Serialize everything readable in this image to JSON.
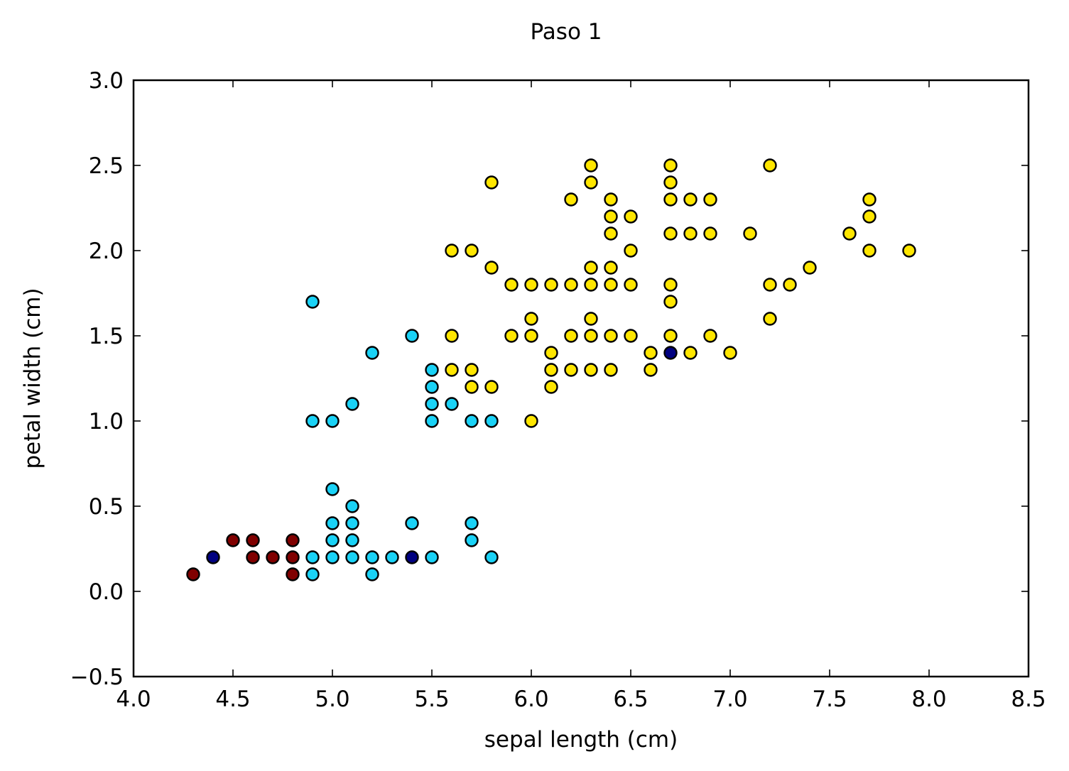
{
  "chart_data": {
    "type": "scatter",
    "title": "Paso 1",
    "xlabel": "sepal length (cm)",
    "ylabel": "petal width (cm)",
    "xlim": [
      4.0,
      8.5
    ],
    "ylim": [
      -0.5,
      3.0
    ],
    "xticks": [
      4.0,
      4.5,
      5.0,
      5.5,
      6.0,
      6.5,
      7.0,
      7.5,
      8.0,
      8.5
    ],
    "yticks": [
      -0.5,
      0.0,
      0.5,
      1.0,
      1.5,
      2.0,
      2.5,
      3.0
    ],
    "xtick_labels": [
      "4.0",
      "4.5",
      "5.0",
      "5.5",
      "6.0",
      "6.5",
      "7.0",
      "7.5",
      "8.0",
      "8.5"
    ],
    "ytick_labels": [
      "−0.5",
      "0.0",
      "0.5",
      "1.0",
      "1.5",
      "2.0",
      "2.5",
      "3.0"
    ],
    "grid": false,
    "series": [
      {
        "color": "#800000",
        "points": [
          [
            4.3,
            0.1
          ],
          [
            4.5,
            0.3
          ],
          [
            4.6,
            0.3
          ],
          [
            4.6,
            0.2
          ],
          [
            4.7,
            0.2
          ],
          [
            4.8,
            0.3
          ],
          [
            4.8,
            0.2
          ],
          [
            4.8,
            0.1
          ]
        ]
      },
      {
        "color": "#1ad2f6",
        "points": [
          [
            4.9,
            0.2
          ],
          [
            4.9,
            0.1
          ],
          [
            4.9,
            1.0
          ],
          [
            4.9,
            1.7
          ],
          [
            5.0,
            0.2
          ],
          [
            5.0,
            0.3
          ],
          [
            5.0,
            0.4
          ],
          [
            5.0,
            0.6
          ],
          [
            5.0,
            1.0
          ],
          [
            5.1,
            0.2
          ],
          [
            5.1,
            0.3
          ],
          [
            5.1,
            0.4
          ],
          [
            5.1,
            0.5
          ],
          [
            5.1,
            1.1
          ],
          [
            5.2,
            0.1
          ],
          [
            5.2,
            0.2
          ],
          [
            5.2,
            1.4
          ],
          [
            5.3,
            0.2
          ],
          [
            5.4,
            0.4
          ],
          [
            5.4,
            1.5
          ],
          [
            5.5,
            0.2
          ],
          [
            5.5,
            1.0
          ],
          [
            5.5,
            1.1
          ],
          [
            5.5,
            1.2
          ],
          [
            5.5,
            1.3
          ],
          [
            5.6,
            1.1
          ],
          [
            5.7,
            0.3
          ],
          [
            5.7,
            0.4
          ],
          [
            5.7,
            1.0
          ],
          [
            5.8,
            0.2
          ],
          [
            5.8,
            1.0
          ]
        ]
      },
      {
        "color": "#ffe600",
        "points": [
          [
            5.6,
            1.3
          ],
          [
            5.6,
            1.5
          ],
          [
            5.6,
            2.0
          ],
          [
            5.7,
            1.2
          ],
          [
            5.7,
            1.3
          ],
          [
            5.7,
            2.0
          ],
          [
            5.8,
            1.2
          ],
          [
            5.8,
            1.9
          ],
          [
            5.8,
            2.4
          ],
          [
            5.9,
            1.5
          ],
          [
            5.9,
            1.8
          ],
          [
            6.0,
            1.0
          ],
          [
            6.0,
            1.5
          ],
          [
            6.0,
            1.6
          ],
          [
            6.0,
            1.8
          ],
          [
            6.1,
            1.2
          ],
          [
            6.1,
            1.3
          ],
          [
            6.1,
            1.4
          ],
          [
            6.1,
            1.8
          ],
          [
            6.2,
            1.3
          ],
          [
            6.2,
            1.5
          ],
          [
            6.2,
            1.8
          ],
          [
            6.2,
            2.3
          ],
          [
            6.3,
            1.3
          ],
          [
            6.3,
            1.5
          ],
          [
            6.3,
            1.6
          ],
          [
            6.3,
            1.8
          ],
          [
            6.3,
            1.9
          ],
          [
            6.3,
            2.4
          ],
          [
            6.3,
            2.5
          ],
          [
            6.4,
            1.3
          ],
          [
            6.4,
            1.5
          ],
          [
            6.4,
            1.8
          ],
          [
            6.4,
            1.9
          ],
          [
            6.4,
            2.1
          ],
          [
            6.4,
            2.2
          ],
          [
            6.4,
            2.3
          ],
          [
            6.5,
            1.5
          ],
          [
            6.5,
            1.8
          ],
          [
            6.5,
            2.0
          ],
          [
            6.5,
            2.2
          ],
          [
            6.6,
            1.3
          ],
          [
            6.6,
            1.4
          ],
          [
            6.7,
            1.5
          ],
          [
            6.7,
            1.7
          ],
          [
            6.7,
            1.8
          ],
          [
            6.7,
            2.1
          ],
          [
            6.7,
            2.3
          ],
          [
            6.7,
            2.4
          ],
          [
            6.7,
            2.5
          ],
          [
            6.8,
            1.4
          ],
          [
            6.8,
            2.1
          ],
          [
            6.8,
            2.3
          ],
          [
            6.9,
            1.5
          ],
          [
            6.9,
            2.1
          ],
          [
            6.9,
            2.3
          ],
          [
            7.0,
            1.4
          ],
          [
            7.1,
            2.1
          ],
          [
            7.2,
            1.6
          ],
          [
            7.2,
            1.8
          ],
          [
            7.2,
            2.5
          ],
          [
            7.3,
            1.8
          ],
          [
            7.4,
            1.9
          ],
          [
            7.6,
            2.1
          ],
          [
            7.7,
            2.0
          ],
          [
            7.7,
            2.2
          ],
          [
            7.7,
            2.3
          ],
          [
            7.9,
            2.0
          ]
        ]
      },
      {
        "color": "#000080",
        "points": [
          [
            4.4,
            0.2
          ],
          [
            5.4,
            0.2
          ],
          [
            6.7,
            1.4
          ]
        ]
      }
    ]
  }
}
